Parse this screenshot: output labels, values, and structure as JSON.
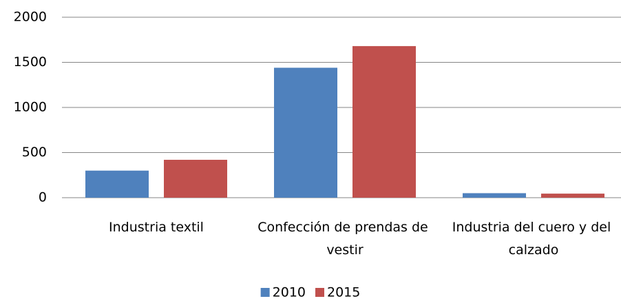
{
  "chart_data": {
    "type": "bar",
    "categories": [
      "Industria textil",
      "Confección de prendas de vestir",
      "Industria del cuero y del calzado"
    ],
    "series": [
      {
        "name": "2010",
        "color": "#4f81bd",
        "values": [
          300,
          1440,
          50
        ]
      },
      {
        "name": "2015",
        "color": "#c0504d",
        "values": [
          420,
          1680,
          45
        ]
      }
    ],
    "ylim": [
      0,
      2000
    ],
    "yticks": [
      0,
      500,
      1000,
      1500,
      2000
    ],
    "grid": true,
    "legend": "bottom"
  }
}
